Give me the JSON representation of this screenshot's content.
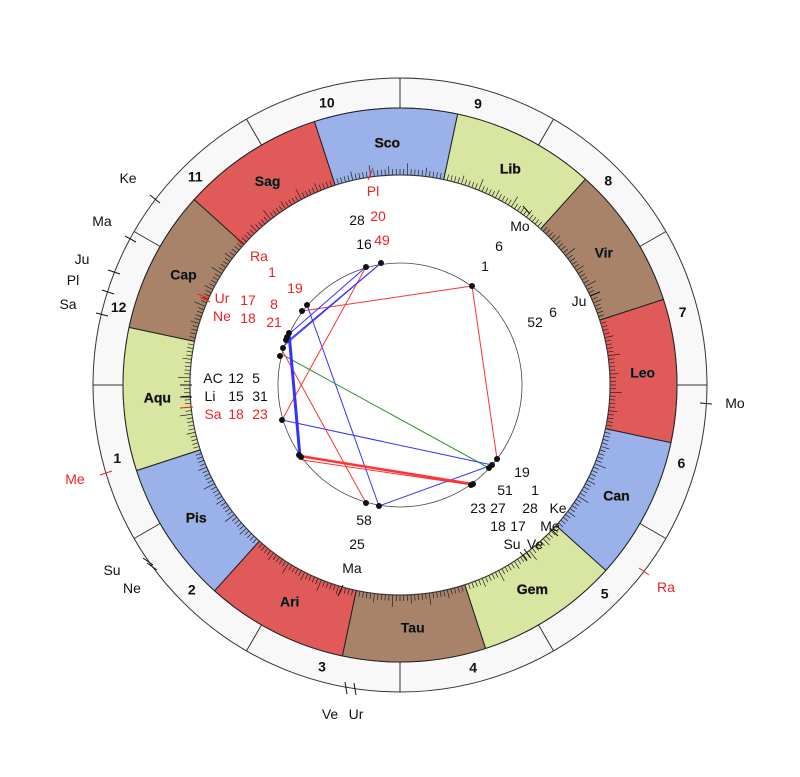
{
  "colors": {
    "fire": "#e05a5a",
    "earth": "#a8836a",
    "air": "#d8e6a2",
    "water": "#9ab1e9",
    "house_ring": "#f8f8f8",
    "red_text": "#ee2222",
    "black_text": "#111111",
    "aspect_red": "#ff3333",
    "aspect_blue": "#3333ff",
    "aspect_green": "#339933"
  },
  "signs": [
    {
      "name": "Aqu",
      "element": "air"
    },
    {
      "name": "Pis",
      "element": "water"
    },
    {
      "name": "Ari",
      "element": "fire"
    },
    {
      "name": "Tau",
      "element": "earth"
    },
    {
      "name": "Gem",
      "element": "air"
    },
    {
      "name": "Can",
      "element": "water"
    },
    {
      "name": "Leo",
      "element": "fire"
    },
    {
      "name": "Vir",
      "element": "earth"
    },
    {
      "name": "Lib",
      "element": "air"
    },
    {
      "name": "Sco",
      "element": "water"
    },
    {
      "name": "Sag",
      "element": "fire"
    },
    {
      "name": "Cap",
      "element": "earth"
    }
  ],
  "houses": [
    "1",
    "2",
    "3",
    "4",
    "5",
    "6",
    "7",
    "8",
    "9",
    "10",
    "11",
    "12"
  ],
  "labels": [
    {
      "t": "Pl",
      "c": "red"
    },
    {
      "t": "20",
      "c": "red"
    },
    {
      "t": "49",
      "c": "red"
    },
    {
      "t": "Ra",
      "c": "red"
    },
    {
      "t": "1",
      "c": "red"
    },
    {
      "t": "19",
      "c": "red"
    },
    {
      "t": "Ur",
      "c": "red"
    },
    {
      "t": "Ne",
      "c": "red"
    },
    {
      "t": "17",
      "c": "red"
    },
    {
      "t": "18",
      "c": "red"
    },
    {
      "t": "8",
      "c": "red"
    },
    {
      "t": "21",
      "c": "red"
    },
    {
      "t": "Sa",
      "c": "red"
    },
    {
      "t": "18",
      "c": "red"
    },
    {
      "t": "23",
      "c": "red"
    },
    {
      "t": "Me",
      "c": "red"
    },
    {
      "t": "Ra",
      "c": "red"
    },
    {
      "t": "28",
      "c": "black"
    },
    {
      "t": "16",
      "c": "black"
    },
    {
      "t": "1",
      "c": "black"
    },
    {
      "t": "6",
      "c": "black"
    },
    {
      "t": "Mo",
      "c": "black"
    },
    {
      "t": "Ju",
      "c": "black"
    },
    {
      "t": "6",
      "c": "black"
    },
    {
      "t": "52",
      "c": "black"
    },
    {
      "t": "AC",
      "c": "black"
    },
    {
      "t": "12",
      "c": "black"
    },
    {
      "t": "5",
      "c": "black"
    },
    {
      "t": "Li",
      "c": "black"
    },
    {
      "t": "15",
      "c": "black"
    },
    {
      "t": "31",
      "c": "black"
    },
    {
      "t": "19",
      "c": "black"
    },
    {
      "t": "51",
      "c": "black"
    },
    {
      "t": "27",
      "c": "black"
    },
    {
      "t": "23",
      "c": "black"
    },
    {
      "t": "1",
      "c": "black"
    },
    {
      "t": "28",
      "c": "black"
    },
    {
      "t": "18",
      "c": "black"
    },
    {
      "t": "17",
      "c": "black"
    },
    {
      "t": "Ke",
      "c": "black"
    },
    {
      "t": "Me",
      "c": "black"
    },
    {
      "t": "Su",
      "c": "black"
    },
    {
      "t": "Ve",
      "c": "black"
    },
    {
      "t": "58",
      "c": "black"
    },
    {
      "t": "25",
      "c": "black"
    },
    {
      "t": "Ma",
      "c": "black"
    },
    {
      "t": "Ke",
      "c": "black"
    },
    {
      "t": "Ma",
      "c": "black"
    },
    {
      "t": "Ju",
      "c": "black"
    },
    {
      "t": "Pl",
      "c": "black"
    },
    {
      "t": "Sa",
      "c": "black"
    },
    {
      "t": "Su",
      "c": "black"
    },
    {
      "t": "Ne",
      "c": "black"
    },
    {
      "t": "Ve",
      "c": "black"
    },
    {
      "t": "Ur",
      "c": "black"
    },
    {
      "t": "Mo",
      "c": "black"
    }
  ]
}
